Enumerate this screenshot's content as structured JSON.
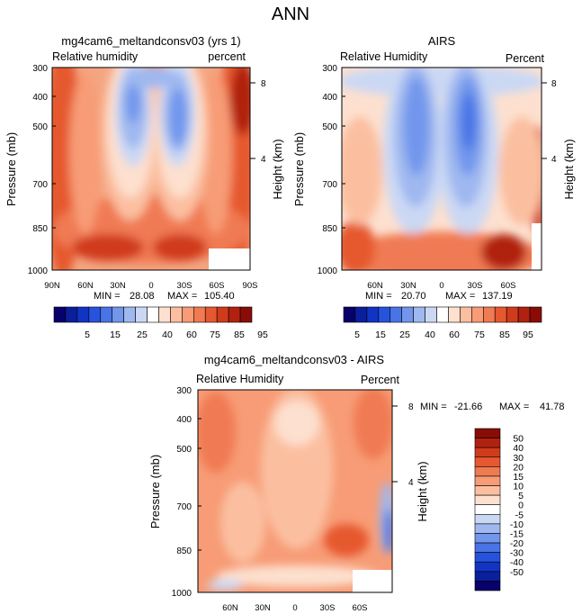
{
  "figure_title": "ANN",
  "chart_data": [
    {
      "type": "heatmap",
      "title": "mg4cam6_meltandconsv03 (yrs 1)",
      "variable_label": "Relative humidity",
      "units_label": "percent",
      "ylabel": "Pressure (mb)",
      "y2label": "Height (km)",
      "y_ticks": [
        "300",
        "400",
        "500",
        "700",
        "850",
        "1000"
      ],
      "y2_ticks": [
        "8",
        "4"
      ],
      "x_ticks": [
        "90N",
        "60N",
        "30N",
        "0",
        "30S",
        "60S",
        "90S"
      ],
      "min_label": "MIN =",
      "min_value": "28.08",
      "max_label": "MAX =",
      "max_value": "105.40",
      "xlim": [
        90,
        -90
      ],
      "ylim": [
        1000,
        300
      ]
    },
    {
      "type": "heatmap",
      "title": "AIRS",
      "variable_label": "Relative Humidity",
      "units_label": "Percent",
      "ylabel": "Pressure (mb)",
      "y2label": "Height (km)",
      "y_ticks": [
        "300",
        "400",
        "500",
        "700",
        "850",
        "1000"
      ],
      "y2_ticks": [
        "8",
        "4"
      ],
      "x_ticks": [
        "60N",
        "30N",
        "0",
        "30S",
        "60S"
      ],
      "min_label": "MIN =",
      "min_value": "20.70",
      "max_label": "MAX =",
      "max_value": "137.19",
      "xlim": [
        75,
        -75
      ],
      "ylim": [
        1000,
        300
      ]
    },
    {
      "type": "heatmap",
      "title": "mg4cam6_meltandconsv03 - AIRS",
      "variable_label": "Relative Humidity",
      "units_label": "Percent",
      "ylabel": "Pressure (mb)",
      "y2label": "Height (km)",
      "y_ticks": [
        "300",
        "400",
        "500",
        "700",
        "850",
        "1000"
      ],
      "y2_ticks": [
        "8",
        "4"
      ],
      "x_ticks": [
        "60N",
        "30N",
        "0",
        "30S",
        "60S"
      ],
      "min_label": "MIN =",
      "min_value": "-21.66",
      "max_label": "MAX =",
      "max_value": "41.78",
      "xlim": [
        75,
        -75
      ],
      "ylim": [
        1000,
        300
      ]
    }
  ],
  "colorbar_abs": {
    "colors": [
      "#08006b",
      "#0a1f9c",
      "#1234c4",
      "#2553dc",
      "#4a74e6",
      "#7196ec",
      "#9fb8f0",
      "#cbd8f4",
      "#ffffff",
      "#fde0cf",
      "#fbbfa0",
      "#f79c76",
      "#f07a52",
      "#e6582f",
      "#d03b1c",
      "#b0220f",
      "#8a0c07"
    ],
    "labels": [
      "5",
      "15",
      "25",
      "40",
      "60",
      "75",
      "85",
      "95"
    ]
  },
  "colorbar_diff": {
    "colors": [
      "#08006b",
      "#0a1f9c",
      "#1234c4",
      "#2553dc",
      "#4a74e6",
      "#7196ec",
      "#9fb8f0",
      "#cbd8f4",
      "#ffffff",
      "#fde0cf",
      "#fbbfa0",
      "#f79c76",
      "#f07a52",
      "#e6582f",
      "#d03b1c",
      "#b0220f",
      "#8a0c07"
    ],
    "labels": [
      "50",
      "40",
      "30",
      "20",
      "15",
      "10",
      "5",
      "0",
      "-5",
      "-10",
      "-15",
      "-20",
      "-30",
      "-40",
      "-50"
    ]
  }
}
